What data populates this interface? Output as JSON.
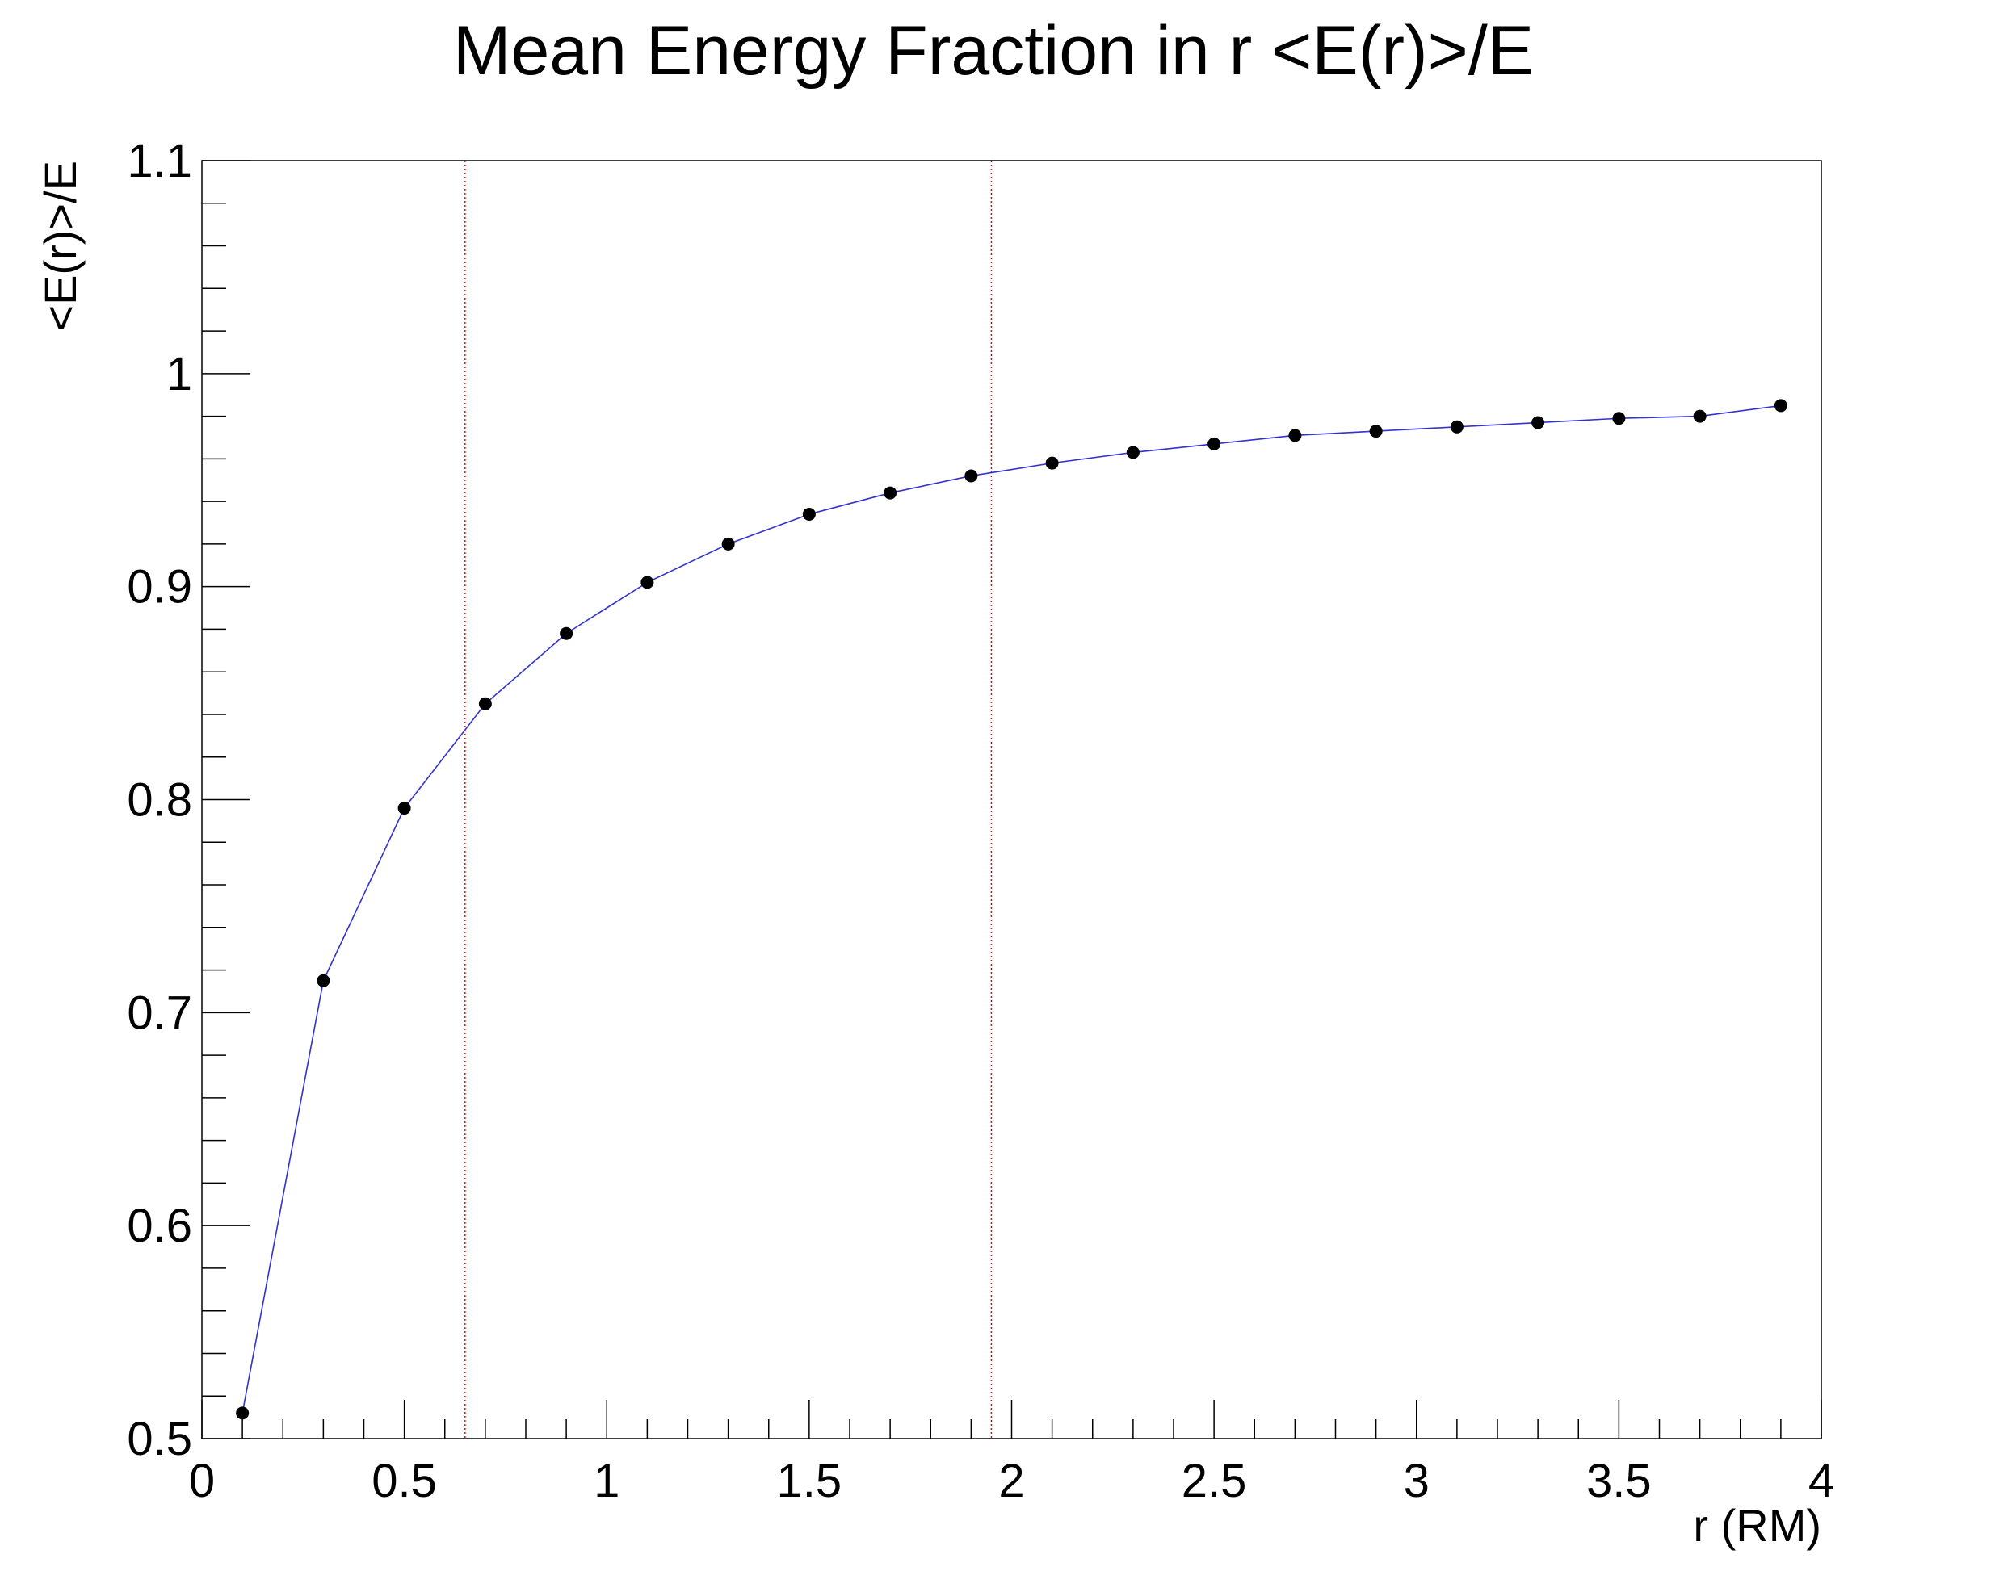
{
  "chart_data": {
    "type": "line",
    "title": "Mean Energy Fraction in r <E(r)>/E",
    "xlabel": "r (RM)",
    "ylabel": "<E(r)>/E",
    "xlim": [
      0,
      4
    ],
    "ylim": [
      0.5,
      1.1
    ],
    "x_ticks": [
      0,
      0.5,
      1,
      1.5,
      2,
      2.5,
      3,
      3.5,
      4
    ],
    "x_tick_labels": [
      "0",
      "0.5",
      "1",
      "1.5",
      "2",
      "2.5",
      "3",
      "3.5",
      "4"
    ],
    "y_ticks": [
      0.5,
      0.6,
      0.7,
      0.8,
      0.9,
      1.0,
      1.1
    ],
    "y_tick_labels": [
      "0.5",
      "0.6",
      "0.7",
      "0.8",
      "0.9",
      "1",
      "1.1"
    ],
    "grid": false,
    "series": [
      {
        "line_color": "#3333cc",
        "marker_color": "#000000",
        "x": [
          0.1,
          0.3,
          0.5,
          0.7,
          0.9,
          1.1,
          1.3,
          1.5,
          1.7,
          1.9,
          2.1,
          2.3,
          2.5,
          2.7,
          2.9,
          3.1,
          3.3,
          3.5,
          3.7,
          3.9
        ],
        "y": [
          0.512,
          0.715,
          0.796,
          0.845,
          0.878,
          0.902,
          0.92,
          0.934,
          0.944,
          0.952,
          0.958,
          0.963,
          0.967,
          0.971,
          0.973,
          0.975,
          0.977,
          0.979,
          0.98,
          0.985
        ]
      }
    ],
    "reference_lines": [
      {
        "axis": "x",
        "value": 0.65,
        "color": "#ff0000",
        "style": "dotted"
      },
      {
        "axis": "x",
        "value": 1.95,
        "color": "#ff0000",
        "style": "dotted"
      }
    ]
  }
}
